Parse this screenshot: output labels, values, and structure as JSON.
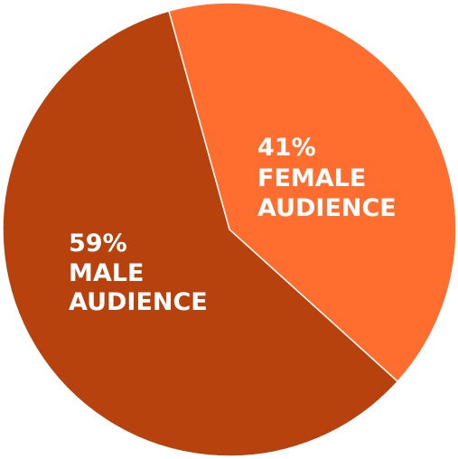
{
  "chart_data": {
    "type": "pie",
    "title": "",
    "slices": [
      {
        "label_lines": [
          "41%",
          "FEMALE",
          "AUDIENCE"
        ],
        "value": 41,
        "color": "#FF6E2E"
      },
      {
        "label_lines": [
          "59%",
          "MALE",
          "AUDIENCE"
        ],
        "value": 59,
        "color": "#B8420E"
      }
    ],
    "start_angle_deg": -15.5,
    "slice_border_color": "#ffffff"
  }
}
